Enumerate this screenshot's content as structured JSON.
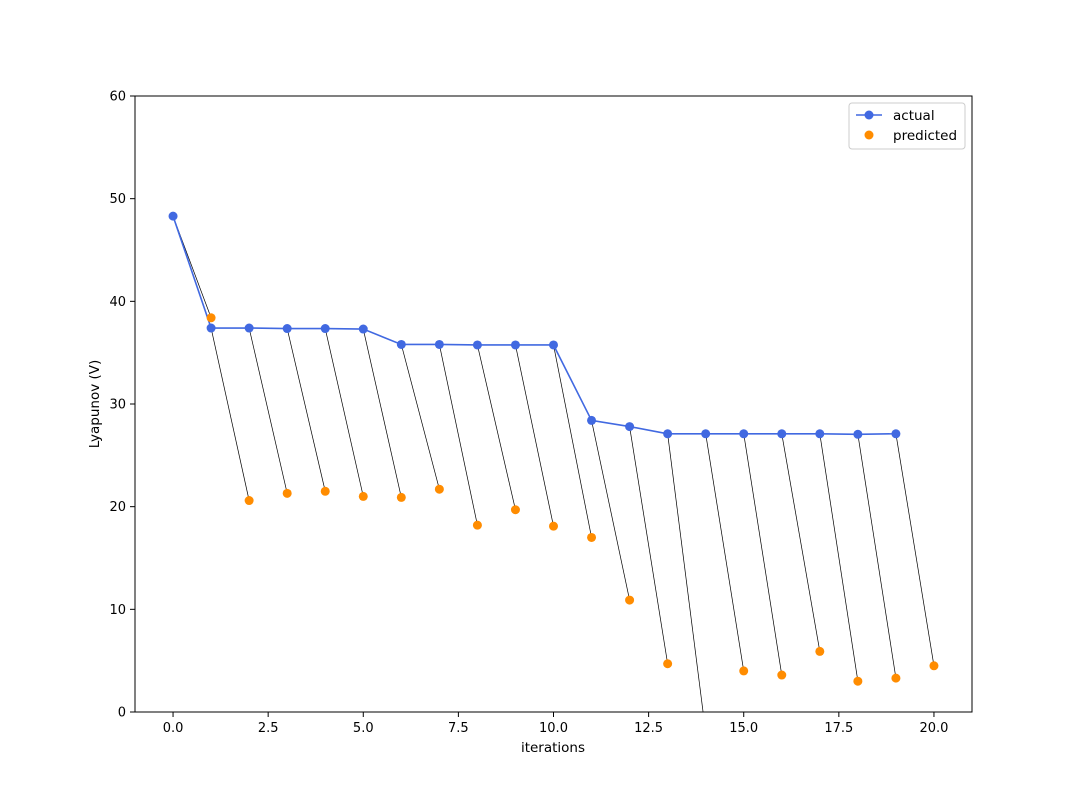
{
  "chart_data": {
    "type": "line",
    "title": "",
    "xlabel": "iterations",
    "ylabel": "Lyapunov (V)",
    "xlim": [
      -1.0,
      21.0
    ],
    "ylim": [
      0,
      60
    ],
    "xticks": [
      0.0,
      2.5,
      5.0,
      7.5,
      10.0,
      12.5,
      15.0,
      17.5,
      20.0
    ],
    "xtick_labels": [
      "0.0",
      "2.5",
      "5.0",
      "7.5",
      "10.0",
      "12.5",
      "15.0",
      "17.5",
      "20.0"
    ],
    "yticks": [
      0,
      10,
      20,
      30,
      40,
      50,
      60
    ],
    "ytick_labels": [
      "0",
      "10",
      "20",
      "30",
      "40",
      "50",
      "60"
    ],
    "grid": false,
    "legend_position": "top-right",
    "series": [
      {
        "name": "actual",
        "kind": "line-markers",
        "color": "#4169e1",
        "x": [
          0,
          1,
          2,
          3,
          4,
          5,
          6,
          7,
          8,
          9,
          10,
          11,
          12,
          13,
          14,
          15,
          16,
          17,
          18,
          19
        ],
        "y": [
          48.3,
          37.4,
          37.4,
          37.35,
          37.35,
          37.3,
          35.8,
          35.8,
          35.75,
          35.75,
          35.75,
          28.4,
          27.8,
          27.1,
          27.1,
          27.1,
          27.1,
          27.1,
          27.05,
          27.1
        ]
      },
      {
        "name": "predicted",
        "kind": "scatter",
        "color": "#ff8c00",
        "x": [
          1,
          2,
          3,
          4,
          5,
          6,
          7,
          8,
          9,
          10,
          11,
          12,
          13,
          14,
          15,
          16,
          17,
          18,
          19,
          20
        ],
        "y": [
          38.4,
          20.6,
          21.3,
          21.5,
          21.0,
          20.9,
          21.7,
          18.2,
          19.7,
          18.1,
          17.0,
          10.9,
          4.7,
          -2.0,
          4.0,
          3.6,
          5.9,
          3.0,
          3.3,
          4.5
        ]
      }
    ],
    "connectors": {
      "description": "thin black lines from each actual point (i) to predicted point (i+1)",
      "color": "#000000"
    }
  }
}
